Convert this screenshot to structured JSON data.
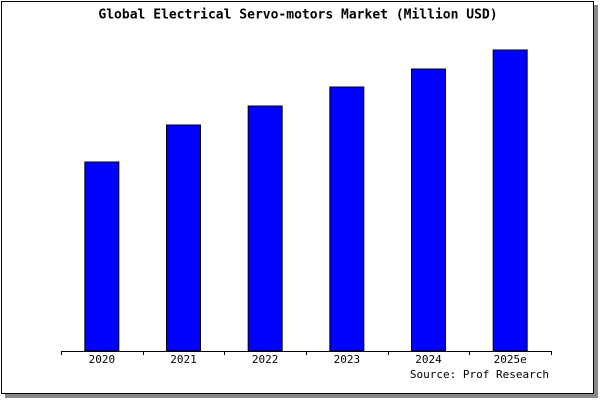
{
  "chart_data": {
    "type": "bar",
    "title": "Global Electrical Servo-motors Market (Million USD)",
    "categories": [
      "2020",
      "2021",
      "2022",
      "2023",
      "2024",
      "2025e"
    ],
    "values": [
      189,
      226,
      245,
      264,
      282,
      301
    ],
    "color": "#0000ff",
    "ylim": [
      0,
      303
    ],
    "source": "Source: Prof Research"
  }
}
